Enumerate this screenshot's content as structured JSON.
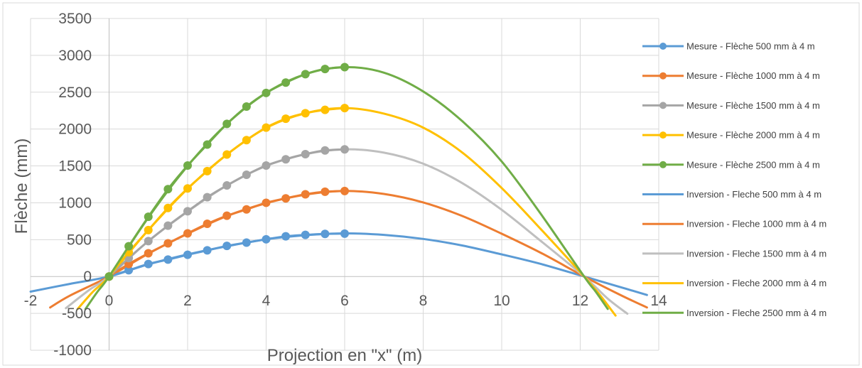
{
  "chart_data": {
    "type": "scatter",
    "title": "",
    "xlabel": "Projection en \"x\" (m)",
    "ylabel": "Flèche (mm)",
    "xlim": [
      -2,
      14
    ],
    "ylim": [
      -1000,
      3500
    ],
    "x_ticks": [
      -2,
      0,
      2,
      4,
      6,
      8,
      10,
      12,
      14
    ],
    "y_ticks": [
      -1000,
      -500,
      0,
      500,
      1000,
      1500,
      2000,
      2500,
      3000,
      3500
    ],
    "x_tick_labels": [
      "-2",
      "0",
      "2",
      "4",
      "6",
      "8",
      "10",
      "12",
      "14"
    ],
    "y_tick_labels": [
      "-1000",
      "-500",
      "0",
      "500",
      "1000",
      "1500",
      "2000",
      "2500",
      "3000",
      "3500"
    ],
    "grid": "vertical and horizontal",
    "legend_position": "right",
    "series": [
      {
        "name": "Mesure - Flèche 500 mm à 4 m",
        "color": "#5B9BD5",
        "markers": true,
        "x": [
          0,
          0.5,
          1,
          1.5,
          2,
          2.5,
          3,
          3.5,
          4,
          4.5,
          5,
          5.5,
          6
        ],
        "y": [
          0,
          85,
          170,
          230,
          295,
          355,
          415,
          460,
          505,
          545,
          565,
          578,
          582
        ]
      },
      {
        "name": "Mesure - Flèche 1000 mm à 4 m",
        "color": "#ED7D31",
        "markers": true,
        "x": [
          0,
          0.5,
          1,
          1.5,
          2,
          2.5,
          3,
          3.5,
          4,
          4.5,
          5,
          5.5,
          6
        ],
        "y": [
          0,
          170,
          315,
          450,
          585,
          715,
          825,
          910,
          1000,
          1060,
          1115,
          1150,
          1160
        ]
      },
      {
        "name": "Mesure - Flèche 1500 mm à 4 m",
        "color": "#A5A5A5",
        "markers": true,
        "x": [
          0,
          0.5,
          1,
          1.5,
          2,
          2.5,
          3,
          3.5,
          4,
          4.5,
          5,
          5.5,
          6
        ],
        "y": [
          0,
          250,
          480,
          690,
          885,
          1075,
          1235,
          1380,
          1505,
          1590,
          1660,
          1710,
          1725
        ]
      },
      {
        "name": "Mesure - Flèche 2000 mm à 4 m",
        "color": "#FFC000",
        "markers": true,
        "x": [
          0,
          0.5,
          1,
          1.5,
          2,
          2.5,
          3,
          3.5,
          4,
          4.5,
          5,
          5.5,
          6
        ],
        "y": [
          0,
          330,
          630,
          930,
          1195,
          1430,
          1655,
          1850,
          2020,
          2140,
          2215,
          2260,
          2285
        ]
      },
      {
        "name": "Mesure - Flèche 2500 mm à 4 m",
        "color": "#70AD47",
        "markers": true,
        "x": [
          0,
          0.5,
          1,
          1.5,
          2,
          2.5,
          3,
          3.5,
          4,
          4.5,
          5,
          5.5,
          6
        ],
        "y": [
          0,
          410,
          810,
          1185,
          1505,
          1790,
          2070,
          2305,
          2490,
          2630,
          2745,
          2815,
          2840
        ]
      },
      {
        "name": "Inversion - Fleche 500 mm à 4 m",
        "color": "#5B9BD5",
        "markers": false,
        "x": [
          -2,
          -1,
          0,
          1,
          2,
          3,
          4,
          5,
          6,
          7,
          8,
          9,
          10,
          11,
          12.1,
          13,
          13.7
        ],
        "y": [
          -205,
          -100,
          0,
          165,
          300,
          410,
          505,
          560,
          585,
          565,
          510,
          420,
          300,
          170,
          0,
          -140,
          -250
        ]
      },
      {
        "name": "Inversion - Fleche 1000 mm à 4 m",
        "color": "#ED7D31",
        "markers": false,
        "x": [
          -1.5,
          -1,
          0,
          1,
          2,
          3,
          4,
          5,
          6,
          7,
          8,
          9,
          10,
          11,
          12.1,
          13,
          13.7
        ],
        "y": [
          -420,
          -260,
          0,
          310,
          580,
          820,
          995,
          1110,
          1160,
          1120,
          1005,
          820,
          580,
          320,
          0,
          -245,
          -420
        ]
      },
      {
        "name": "Inversion - Fleche 1500 mm à 4 m",
        "color": "#BFBFBF",
        "markers": false,
        "x": [
          -1.1,
          -0.5,
          0,
          1,
          2,
          3,
          4,
          5,
          6,
          7,
          8,
          9,
          10,
          11,
          12.1,
          12.7,
          13.2
        ],
        "y": [
          -430,
          -180,
          0,
          480,
          880,
          1235,
          1500,
          1660,
          1725,
          1680,
          1530,
          1265,
          905,
          480,
          0,
          -300,
          -505
        ]
      },
      {
        "name": "Inversion - Fleche 2000 mm à 4 m",
        "color": "#FFC000",
        "markers": false,
        "x": [
          -0.8,
          -0.4,
          0,
          1,
          2,
          3,
          4,
          5,
          6,
          7,
          8,
          9,
          10,
          11,
          12.1,
          12.5,
          12.9
        ],
        "y": [
          -440,
          -200,
          0,
          630,
          1190,
          1655,
          2015,
          2215,
          2285,
          2210,
          2020,
          1680,
          1200,
          640,
          0,
          -250,
          -530
        ]
      },
      {
        "name": "Inversion - Fleche 2500 mm à 4 m",
        "color": "#70AD47",
        "markers": false,
        "x": [
          -0.6,
          -0.3,
          0,
          1,
          2,
          3,
          4,
          5,
          6,
          7,
          8,
          9,
          10,
          11,
          12.1,
          12.4,
          12.7
        ],
        "y": [
          -440,
          -210,
          0,
          800,
          1500,
          2070,
          2490,
          2745,
          2840,
          2765,
          2510,
          2105,
          1560,
          845,
          0,
          -210,
          -440
        ]
      }
    ]
  }
}
